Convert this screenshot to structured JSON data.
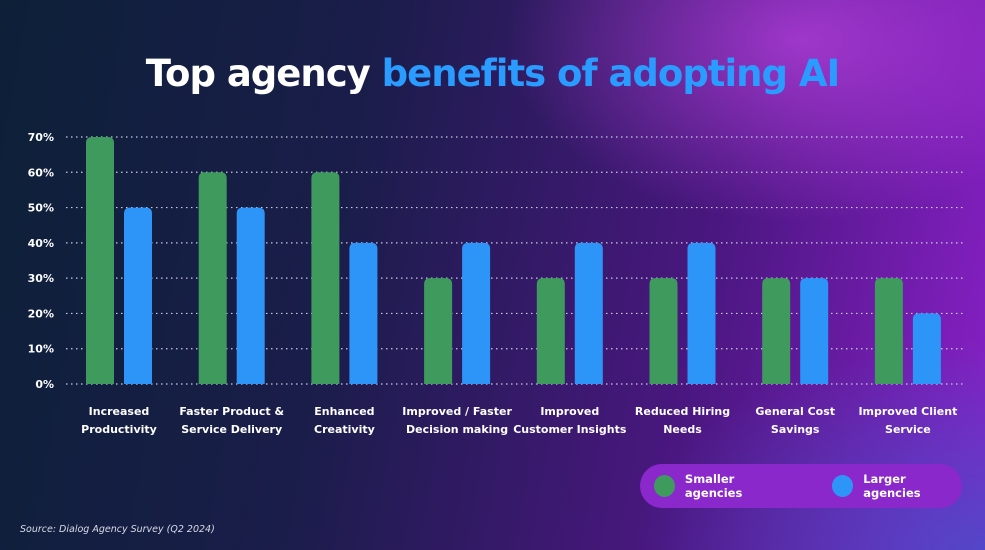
{
  "chart_data": {
    "type": "bar",
    "title_part1": "Top agency",
    "title_part2": "benefits of adopting AI",
    "categories": [
      [
        "Increased",
        "Productivity"
      ],
      [
        "Faster Product &",
        "Service Delivery"
      ],
      [
        "Enhanced",
        "Creativity"
      ],
      [
        "Improved / Faster",
        "Decision making"
      ],
      [
        "Improved",
        "Customer Insights"
      ],
      [
        "Reduced Hiring",
        "Needs"
      ],
      [
        "General Cost",
        "Savings"
      ],
      [
        "Improved Client",
        "Service"
      ]
    ],
    "series": [
      {
        "name": "Smaller agencies",
        "color": "#3f9a5e",
        "values": [
          70,
          60,
          60,
          30,
          30,
          30,
          30,
          30
        ]
      },
      {
        "name": "Larger agencies",
        "color": "#2e95f8",
        "values": [
          50,
          50,
          40,
          40,
          40,
          40,
          30,
          20
        ]
      }
    ],
    "yticks": [
      "0%",
      "10%",
      "20%",
      "30%",
      "40%",
      "50%",
      "60%",
      "70%"
    ],
    "ylim": [
      0,
      70
    ],
    "grid": true,
    "legend_position": "bottom-right",
    "source": "Source: Dialog Agency Survey (Q2 2024)"
  }
}
